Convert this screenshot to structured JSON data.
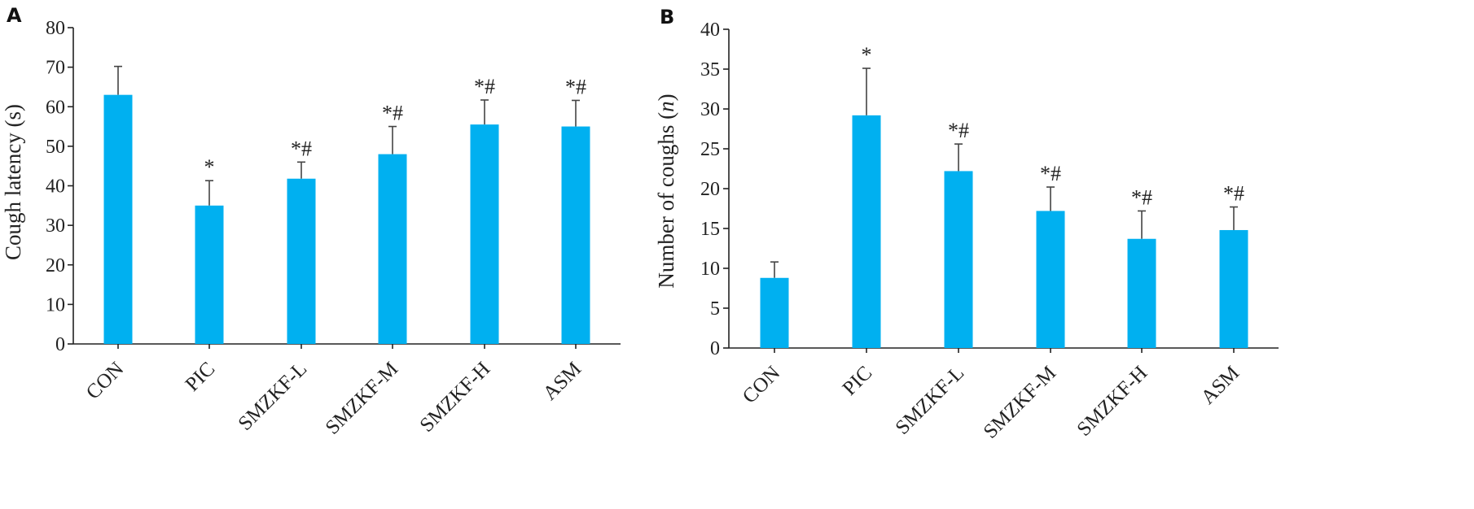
{
  "figure": {
    "bar_color": "#00b0f0",
    "axis_color": "#222222"
  },
  "chart_data": [
    {
      "panel": "A",
      "type": "bar",
      "ylabel": "Cough latency (s)",
      "xlabel": "",
      "ylim": [
        0,
        80
      ],
      "yticks": [
        0,
        10,
        20,
        30,
        40,
        50,
        60,
        70,
        80
      ],
      "categories": [
        "CON",
        "PIC",
        "SMZKF-L",
        "SMZKF-M",
        "SMZKF-H",
        "ASM"
      ],
      "values": [
        63,
        35,
        41.8,
        48,
        55.5,
        55
      ],
      "errors": [
        7.2,
        6.3,
        4.2,
        7,
        6.2,
        6.6
      ],
      "annotations": [
        "",
        "*",
        "*#",
        "*#",
        "*#",
        "*#"
      ]
    },
    {
      "panel": "B",
      "type": "bar",
      "ylabel": "Number of coughs (n)",
      "ylabel_main": "Number of coughs (",
      "ylabel_italic": "n",
      "ylabel_end": ")",
      "xlabel": "",
      "ylim": [
        0,
        40
      ],
      "yticks": [
        0,
        5,
        10,
        15,
        20,
        25,
        30,
        35,
        40
      ],
      "categories": [
        "CON",
        "PIC",
        "SMZKF-L",
        "SMZKF-M",
        "SMZKF-H",
        "ASM"
      ],
      "values": [
        8.8,
        29.2,
        22.2,
        17.2,
        13.7,
        14.8
      ],
      "errors": [
        2,
        5.9,
        3.4,
        3,
        3.5,
        2.9
      ],
      "annotations": [
        "",
        "*",
        "*#",
        "*#",
        "*#",
        "*#"
      ]
    }
  ]
}
